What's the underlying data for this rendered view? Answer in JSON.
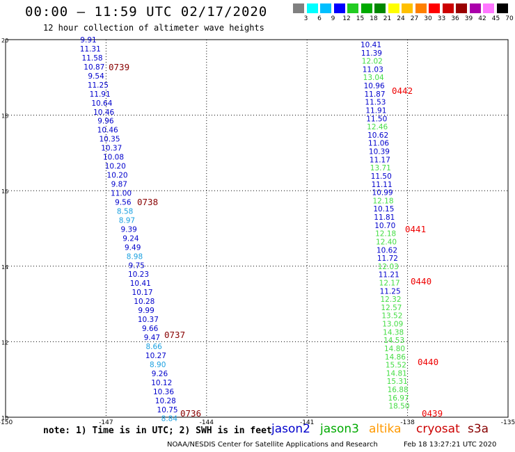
{
  "header": {
    "title": "00:00 – 11:59 UTC 02/17/2020",
    "subtitle": "12 hour collection of altimeter wave heights"
  },
  "footer": {
    "note": "note: 1) Time is in UTC; 2) SWH is in feet",
    "credit": "NOAA/NESDIS Center for Satellite Applications and Research",
    "timestamp": "Feb 18 13:27:21 UTC 2020"
  },
  "missions": [
    {
      "name": "jason2",
      "color": "#0000cc"
    },
    {
      "name": "jason3",
      "color": "#00aa00"
    },
    {
      "name": "altika",
      "color": "#ff9900"
    },
    {
      "name": "cryosat",
      "color": "#cc0000"
    },
    {
      "name": "s3a",
      "color": "#880000"
    }
  ],
  "color_scale": {
    "unit": "(ft)",
    "labels": [
      "3",
      "6",
      "9",
      "12",
      "15",
      "18",
      "21",
      "24",
      "27",
      "30",
      "33",
      "36",
      "39",
      "42",
      "45",
      "70"
    ],
    "colors": [
      "#808080",
      "#00ffff",
      "#00bfff",
      "#0000ff",
      "#22cc22",
      "#00aa00",
      "#008800",
      "#ffff00",
      "#ffc000",
      "#ff8000",
      "#ff0000",
      "#cc0000",
      "#990000",
      "#aa00aa",
      "#ff77ff",
      "#000000"
    ]
  },
  "chart_data": {
    "type": "scatter",
    "xlim": [
      -150,
      -135
    ],
    "ylim": [
      10,
      20
    ],
    "xticks": [
      "-150",
      "-147",
      "-144",
      "-141",
      "-138",
      "-135"
    ],
    "yticks": [
      "20",
      "18",
      "16",
      "14",
      "12",
      "10"
    ],
    "points": [
      {
        "v": "9.91",
        "c": "#0000cc"
      },
      {
        "v": "11.31",
        "c": "#0000cc"
      },
      {
        "v": "11.58",
        "c": "#0000cc"
      },
      {
        "v": "10.87",
        "c": "#0000cc"
      },
      {
        "v": "9.54",
        "c": "#0000cc"
      },
      {
        "v": "11.25",
        "c": "#0000cc"
      },
      {
        "v": "11.91",
        "c": "#0000cc"
      },
      {
        "v": "10.64",
        "c": "#0000cc"
      },
      {
        "v": "10.46",
        "c": "#0000cc"
      },
      {
        "v": "9.96",
        "c": "#0000cc"
      },
      {
        "v": "10.46",
        "c": "#0000cc"
      },
      {
        "v": "10.35",
        "c": "#0000cc"
      },
      {
        "v": "10.37",
        "c": "#0000cc"
      },
      {
        "v": "10.08",
        "c": "#0000cc"
      },
      {
        "v": "10.20",
        "c": "#0000cc"
      },
      {
        "v": "10.20",
        "c": "#0000cc"
      },
      {
        "v": "9.87",
        "c": "#0000cc"
      },
      {
        "v": "11.00",
        "c": "#0000cc"
      },
      {
        "v": "9.56",
        "c": "#0000cc"
      },
      {
        "v": "8.58",
        "c": "#1aa0e0"
      },
      {
        "v": "8.97",
        "c": "#1aa0e0"
      },
      {
        "v": "9.39",
        "c": "#0000cc"
      },
      {
        "v": "9.24",
        "c": "#0000cc"
      },
      {
        "v": "9.49",
        "c": "#0000cc"
      },
      {
        "v": "8.98",
        "c": "#1aa0e0"
      },
      {
        "v": "9.75",
        "c": "#0000cc"
      },
      {
        "v": "10.23",
        "c": "#0000cc"
      },
      {
        "v": "10.41",
        "c": "#0000cc"
      },
      {
        "v": "10.17",
        "c": "#0000cc"
      },
      {
        "v": "10.28",
        "c": "#0000cc"
      },
      {
        "v": "9.99",
        "c": "#0000cc"
      },
      {
        "v": "10.37",
        "c": "#0000cc"
      },
      {
        "v": "9.66",
        "c": "#0000cc"
      },
      {
        "v": "9.47",
        "c": "#0000cc"
      },
      {
        "v": "8.66",
        "c": "#1aa0e0"
      },
      {
        "v": "10.27",
        "c": "#0000cc"
      },
      {
        "v": "8.90",
        "c": "#1aa0e0"
      },
      {
        "v": "9.26",
        "c": "#0000cc"
      },
      {
        "v": "10.12",
        "c": "#0000cc"
      },
      {
        "v": "10.36",
        "c": "#0000cc"
      },
      {
        "v": "10.28",
        "c": "#0000cc"
      },
      {
        "v": "10.75",
        "c": "#0000cc"
      },
      {
        "v": "8.84",
        "c": "#1aa0e0"
      },
      {
        "v": "10.41",
        "c": "#0000cc"
      },
      {
        "v": "11.39",
        "c": "#0000cc"
      },
      {
        "v": "12.02",
        "c": "#44dd44"
      },
      {
        "v": "11.03",
        "c": "#0000cc"
      },
      {
        "v": "13.04",
        "c": "#44dd44"
      },
      {
        "v": "10.96",
        "c": "#0000cc"
      },
      {
        "v": "11.87",
        "c": "#0000cc"
      },
      {
        "v": "11.53",
        "c": "#0000cc"
      },
      {
        "v": "11.91",
        "c": "#0000cc"
      },
      {
        "v": "11.50",
        "c": "#0000cc"
      },
      {
        "v": "12.46",
        "c": "#44dd44"
      },
      {
        "v": "10.62",
        "c": "#0000cc"
      },
      {
        "v": "11.06",
        "c": "#0000cc"
      },
      {
        "v": "10.39",
        "c": "#0000cc"
      },
      {
        "v": "11.17",
        "c": "#0000cc"
      },
      {
        "v": "13.71",
        "c": "#44dd44"
      },
      {
        "v": "11.50",
        "c": "#0000cc"
      },
      {
        "v": "11.11",
        "c": "#0000cc"
      },
      {
        "v": "10.99",
        "c": "#0000cc"
      },
      {
        "v": "12.18",
        "c": "#44dd44"
      },
      {
        "v": "10.15",
        "c": "#0000cc"
      },
      {
        "v": "11.81",
        "c": "#0000cc"
      },
      {
        "v": "10.70",
        "c": "#0000cc"
      },
      {
        "v": "12.18",
        "c": "#44dd44"
      },
      {
        "v": "12.40",
        "c": "#44dd44"
      },
      {
        "v": "10.62",
        "c": "#0000cc"
      },
      {
        "v": "11.72",
        "c": "#0000cc"
      },
      {
        "v": "12.03",
        "c": "#44dd44"
      },
      {
        "v": "11.21",
        "c": "#0000cc"
      },
      {
        "v": "12.17",
        "c": "#44dd44"
      },
      {
        "v": "11.25",
        "c": "#0000cc"
      },
      {
        "v": "12.32",
        "c": "#44dd44"
      },
      {
        "v": "12.57",
        "c": "#44dd44"
      },
      {
        "v": "13.52",
        "c": "#44dd44"
      },
      {
        "v": "13.09",
        "c": "#44dd44"
      },
      {
        "v": "14.38",
        "c": "#44dd44"
      },
      {
        "v": "14.53",
        "c": "#44dd44"
      },
      {
        "v": "14.80",
        "c": "#44dd44"
      },
      {
        "v": "14.86",
        "c": "#44dd44"
      },
      {
        "v": "15.52",
        "c": "#44dd44"
      },
      {
        "v": "14.81",
        "c": "#44dd44"
      },
      {
        "v": "15.31",
        "c": "#44dd44"
      },
      {
        "v": "16.88",
        "c": "#44dd44"
      },
      {
        "v": "16.97",
        "c": "#44dd44"
      },
      {
        "v": "18.50",
        "c": "#44dd44"
      }
    ],
    "time_labels": [
      {
        "t": "0739",
        "c": "#880000"
      },
      {
        "t": "0738",
        "c": "#880000"
      },
      {
        "t": "0737",
        "c": "#880000"
      },
      {
        "t": "0736",
        "c": "#880000"
      },
      {
        "t": "0442",
        "c": "#ee0000"
      },
      {
        "t": "0441",
        "c": "#ee0000"
      },
      {
        "t": "0440",
        "c": "#ee0000"
      },
      {
        "t": "0440",
        "c": "#ee0000"
      },
      {
        "t": "0439",
        "c": "#ee0000"
      }
    ]
  }
}
